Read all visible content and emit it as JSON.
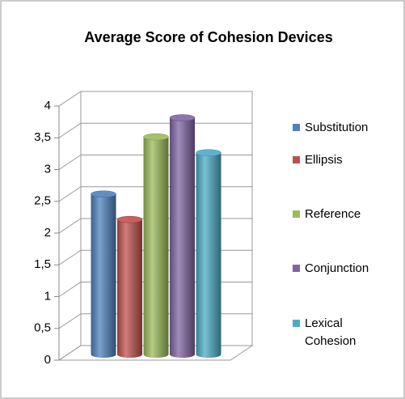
{
  "chart_data": {
    "type": "bar3d",
    "title": "Average Score of Cohesion Devices",
    "categories": [
      null
    ],
    "series": [
      {
        "name": "Substitution",
        "color": "#4f81bd",
        "values": [
          2.5
        ]
      },
      {
        "name": "Ellipsis",
        "color": "#c0504d",
        "values": [
          2.1
        ]
      },
      {
        "name": "Reference",
        "color": "#9bbb59",
        "values": [
          3.4
        ]
      },
      {
        "name": "Conjunction",
        "color": "#8064a2",
        "values": [
          3.7
        ]
      },
      {
        "name": "Lexical Cohesion",
        "color": "#4bacc6",
        "values": [
          3.15
        ]
      }
    ],
    "ylim": [
      0,
      4
    ],
    "yticks": [
      0,
      {
        "value": 0.5,
        "label": "0,5"
      },
      1,
      {
        "value": 1.5,
        "label": "1,5"
      },
      2,
      {
        "value": 2.5,
        "label": "2,5"
      },
      3,
      {
        "value": 3.5,
        "label": "3,5"
      },
      4
    ],
    "grid": true,
    "legend": "right"
  }
}
